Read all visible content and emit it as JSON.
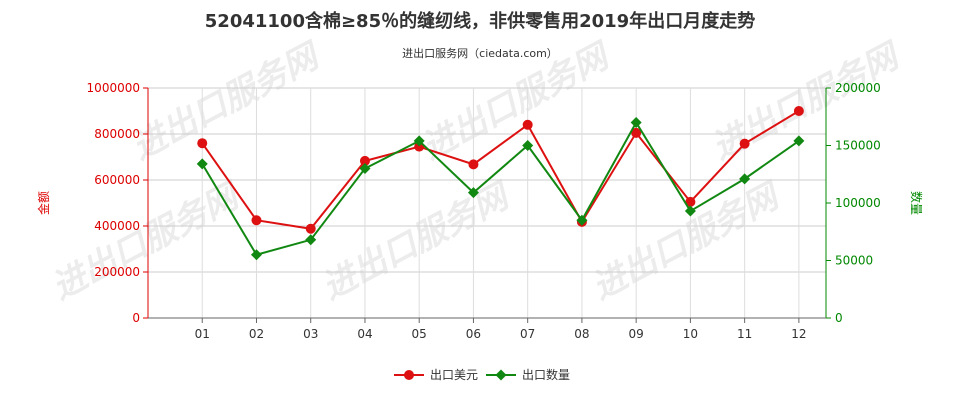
{
  "chart_data": {
    "type": "line",
    "title": "52041100含棉≥85％的缝纫线，非供零售用2019年出口月度走势",
    "subtitle": "进出口服务网（ciedata.com）",
    "categories": [
      "01",
      "02",
      "03",
      "04",
      "05",
      "06",
      "07",
      "08",
      "09",
      "10",
      "11",
      "12"
    ],
    "y_left": {
      "label": "金额",
      "range": [
        0,
        1000000
      ],
      "ticks": [
        0,
        200000,
        400000,
        600000,
        800000,
        1000000
      ],
      "tick_labels": [
        "0",
        "200000",
        "400000",
        "600000",
        "800000",
        "1000000"
      ],
      "color": "#dd0000"
    },
    "y_right": {
      "label": "数量",
      "range": [
        0,
        200000
      ],
      "ticks": [
        0,
        50000,
        100000,
        150000,
        200000
      ],
      "tick_labels": [
        "0",
        "50000",
        "100000",
        "150000",
        "200000"
      ],
      "color": "#008800"
    },
    "series": [
      {
        "name": "出口美元",
        "axis": "left",
        "color": "#dd1111",
        "marker": "circle",
        "values": [
          760000,
          425000,
          388000,
          683000,
          745000,
          668000,
          840000,
          418000,
          805000,
          505000,
          758000,
          900000
        ]
      },
      {
        "name": "出口数量",
        "axis": "right",
        "color": "#118811",
        "marker": "diamond",
        "values": [
          134000,
          55000,
          68000,
          130000,
          154000,
          109000,
          150000,
          85000,
          170000,
          93000,
          121000,
          154000
        ]
      }
    ],
    "grid": true,
    "legend_position": "bottom-center"
  }
}
